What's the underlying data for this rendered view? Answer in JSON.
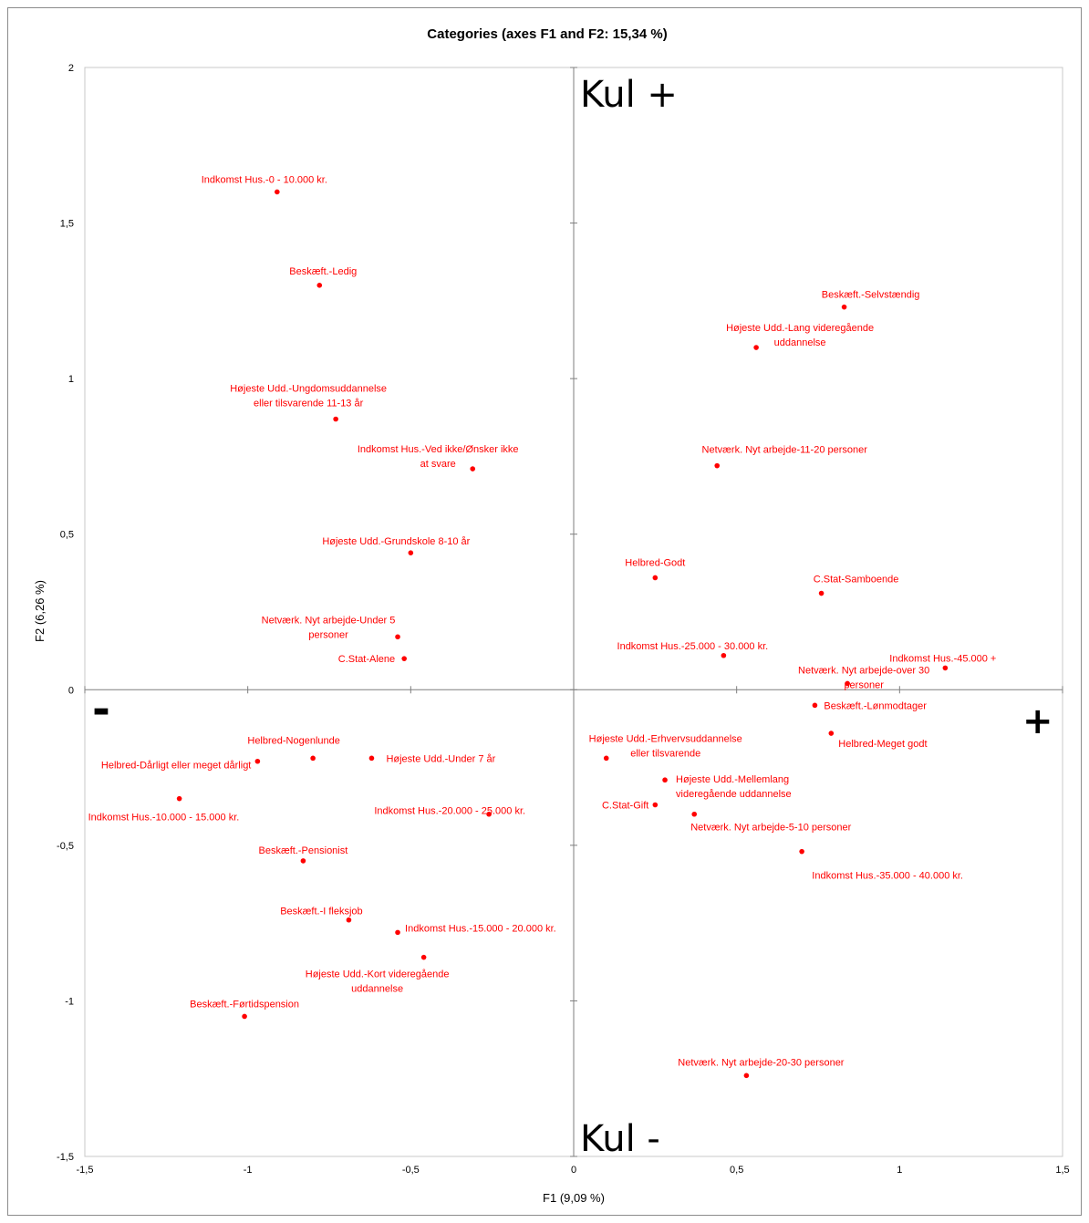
{
  "chart_data": {
    "type": "scatter",
    "title": "Categories (axes F1 and F2: 15,34 %)",
    "xlabel": "F1 (9,09 %)",
    "ylabel": "F2 (6,26 %)",
    "xlim": [
      -1.5,
      1.5
    ],
    "ylim": [
      -1.5,
      2
    ],
    "x_ticks": [
      {
        "v": -1.5,
        "label": "-1,5"
      },
      {
        "v": -1,
        "label": "-1"
      },
      {
        "v": -0.5,
        "label": "-0,5"
      },
      {
        "v": 0,
        "label": "0"
      },
      {
        "v": 0.5,
        "label": "0,5"
      },
      {
        "v": 1,
        "label": "1"
      },
      {
        "v": 1.5,
        "label": "1,5"
      }
    ],
    "y_ticks": [
      {
        "v": -1.5,
        "label": "-1,5"
      },
      {
        "v": -1,
        "label": "-1"
      },
      {
        "v": -0.5,
        "label": "-0,5"
      },
      {
        "v": 0,
        "label": "0"
      },
      {
        "v": 0.5,
        "label": "0,5"
      },
      {
        "v": 1,
        "label": "1"
      },
      {
        "v": 1.5,
        "label": "1,5"
      },
      {
        "v": 2,
        "label": "2"
      }
    ],
    "grid": false,
    "marker_color": "#ff0000",
    "annotations": {
      "top": "Kul +",
      "bottom": "Kul -",
      "left": "-",
      "right": "+"
    },
    "points": [
      {
        "label": "Indkomst Hus.-0 - 10.000 kr.",
        "x": -0.91,
        "y": 1.6
      },
      {
        "label": "Beskæft.-Ledig",
        "x": -0.78,
        "y": 1.3
      },
      {
        "label": "Højeste Udd.-Ungdomsuddannelse eller tilsvarende 11-13 år",
        "x": -0.73,
        "y": 0.87
      },
      {
        "label": "Indkomst Hus.-Ved ikke/Ønsker ikke at svare",
        "x": -0.31,
        "y": 0.71
      },
      {
        "label": "Højeste Udd.-Grundskole 8-10 år",
        "x": -0.5,
        "y": 0.44
      },
      {
        "label": "Netværk. Nyt arbejde-Under 5 personer",
        "x": -0.54,
        "y": 0.17
      },
      {
        "label": "C.Stat-Alene",
        "x": -0.52,
        "y": 0.1
      },
      {
        "label": "Beskæft.-Selvstændig",
        "x": 0.83,
        "y": 1.23
      },
      {
        "label": "Højeste Udd.-Lang videregående uddannelse",
        "x": 0.56,
        "y": 1.1
      },
      {
        "label": "Netværk. Nyt arbejde-11-20 personer",
        "x": 0.44,
        "y": 0.72
      },
      {
        "label": "Helbred-Godt",
        "x": 0.25,
        "y": 0.36
      },
      {
        "label": "C.Stat-Samboende",
        "x": 0.76,
        "y": 0.31
      },
      {
        "label": "Indkomst Hus.-25.000 - 30.000 kr.",
        "x": 0.46,
        "y": 0.11
      },
      {
        "label": "Indkomst Hus.-45.000 +",
        "x": 1.14,
        "y": 0.07
      },
      {
        "label": "Netværk. Nyt arbejde-over 30 personer",
        "x": 0.84,
        "y": 0.02
      },
      {
        "label": "Beskæft.-Lønmodtager",
        "x": 0.74,
        "y": -0.05
      },
      {
        "label": "Helbred-Meget godt",
        "x": 0.79,
        "y": -0.14
      },
      {
        "label": "Højeste Udd.-Erhvervsuddannelse eller tilsvarende",
        "x": 0.1,
        "y": -0.22
      },
      {
        "label": "Højeste Udd.-Mellemlang videregående uddannelse",
        "x": 0.28,
        "y": -0.29
      },
      {
        "label": "C.Stat-Gift",
        "x": 0.25,
        "y": -0.37
      },
      {
        "label": "Netværk. Nyt arbejde-5-10 personer",
        "x": 0.37,
        "y": -0.4
      },
      {
        "label": "Indkomst Hus.-35.000 - 40.000 kr.",
        "x": 0.7,
        "y": -0.52
      },
      {
        "label": "Netværk. Nyt arbejde-20-30 personer",
        "x": 0.53,
        "y": -1.24
      },
      {
        "label": "Helbred-Nogenlunde",
        "x": -0.8,
        "y": -0.22
      },
      {
        "label": "Helbred-Dårligt eller meget dårligt",
        "x": -0.97,
        "y": -0.23
      },
      {
        "label": "Højeste Udd.-Under 7 år",
        "x": -0.62,
        "y": -0.22
      },
      {
        "label": "Indkomst Hus.-10.000 - 15.000 kr.",
        "x": -1.21,
        "y": -0.35
      },
      {
        "label": "Indkomst Hus.-20.000 - 25.000 kr.",
        "x": -0.26,
        "y": -0.4
      },
      {
        "label": "Beskæft.-Pensionist",
        "x": -0.83,
        "y": -0.55
      },
      {
        "label": "Beskæft.-I fleksjob",
        "x": -0.69,
        "y": -0.74
      },
      {
        "label": "Indkomst Hus.-15.000 - 20.000 kr.",
        "x": -0.54,
        "y": -0.78
      },
      {
        "label": "Højeste Udd.-Kort videregående uddannelse",
        "x": -0.46,
        "y": -0.86
      },
      {
        "label": "Beskæft.-Førtidspension",
        "x": -1.01,
        "y": -1.05
      }
    ]
  }
}
